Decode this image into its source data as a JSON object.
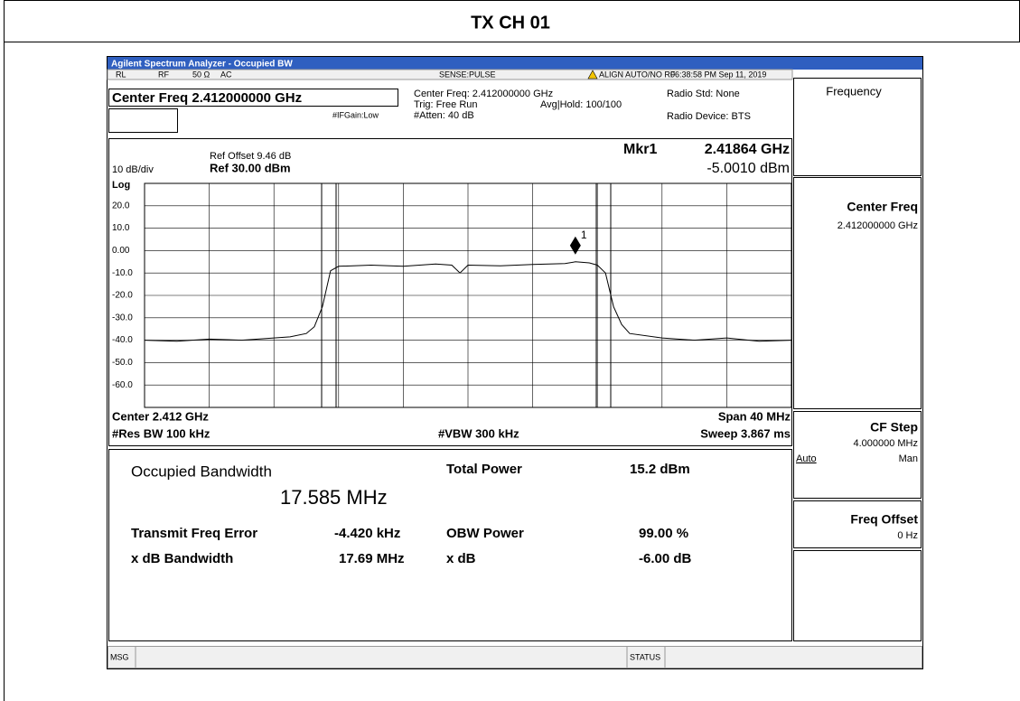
{
  "page_title": "TX CH 01",
  "window_title": "Agilent Spectrum Analyzer - Occupied BW",
  "status_bar": {
    "rl": "RL",
    "rf": "RF",
    "impedance": "50 Ω",
    "coupling": "AC",
    "sense": "SENSE:PULSE",
    "align": "ALIGN AUTO/NO RF",
    "time": "06:38:58 PM Sep 11, 2019"
  },
  "header": {
    "center_freq_box": "Center Freq 2.412000000 GHz",
    "center_freq": "Center Freq: 2.412000000 GHz",
    "trig": "Trig: Free Run",
    "atten": "#Atten: 40 dB",
    "avg_hold": "Avg|Hold: 100/100",
    "radio_std": "Radio Std: None",
    "radio_device": "Radio Device: BTS",
    "if_gain": "#IFGain:Low"
  },
  "graph": {
    "ref_offset": "Ref Offset 9.46 dB",
    "ref_level": "Ref 30.00 dBm",
    "scale": "10 dB/div",
    "scale_type": "Log",
    "marker": {
      "name": "Mkr1",
      "freq_label": "2.41864 GHz",
      "value_label": "-5.0010 dBm",
      "label": "1",
      "freq": 2.41864,
      "value": -5.001
    },
    "center": "Center 2.412 GHz",
    "res_bw": "#Res BW 100 kHz",
    "vbw": "#VBW 300 kHz",
    "span": "Span 40 MHz",
    "sweep": "Sweep 3.867 ms",
    "xlim": [
      2.392,
      2.432
    ],
    "xticks": [
      2.392,
      2.396,
      2.4,
      2.404,
      2.408,
      2.412,
      2.416,
      2.42,
      2.424,
      2.428,
      2.432
    ],
    "ylim": [
      -70,
      30
    ],
    "yticks": [
      {
        "value": 20,
        "label": "20.0"
      },
      {
        "value": 10,
        "label": "10.0"
      },
      {
        "value": 0,
        "label": "0.00"
      },
      {
        "value": -10,
        "label": "-10.0"
      },
      {
        "value": -20,
        "label": "-20.0"
      },
      {
        "value": -30,
        "label": "-30.0"
      },
      {
        "value": -40,
        "label": "-40.0"
      },
      {
        "value": -50,
        "label": "-50.0"
      },
      {
        "value": -60,
        "label": "-60.0"
      }
    ],
    "grid": true,
    "color": "#000000",
    "trace": {
      "x": [
        2.392,
        2.394,
        2.396,
        2.398,
        2.4,
        2.401,
        2.402,
        2.4025,
        2.403,
        2.4035,
        2.404,
        2.406,
        2.408,
        2.41,
        2.411,
        2.4115,
        2.412,
        2.414,
        2.416,
        2.418,
        2.41864,
        2.4195,
        2.42,
        2.4205,
        2.421,
        2.4215,
        2.422,
        2.424,
        2.426,
        2.428,
        2.43,
        2.432
      ],
      "values": [
        -40,
        -40.5,
        -39.5,
        -40,
        -39,
        -38.5,
        -37,
        -34,
        -25,
        -9,
        -7,
        -6.5,
        -7,
        -6,
        -6.5,
        -10,
        -6.5,
        -6.8,
        -6.2,
        -5.8,
        -5,
        -5.5,
        -6.5,
        -10,
        -25,
        -33,
        -37,
        -39,
        -40,
        -39,
        -40.5,
        -40
      ]
    }
  },
  "results": {
    "obw_label": "Occupied Bandwidth",
    "obw_value": "17.585 MHz",
    "total_power_label": "Total Power",
    "total_power": "15.2 dBm",
    "freq_error_label": "Transmit Freq Error",
    "freq_error": "-4.420 kHz",
    "obw_power_label": "OBW Power",
    "obw_power": "99.00 %",
    "xdb_bw_label": "x dB Bandwidth",
    "xdb_bw": "17.69 MHz",
    "xdb_label": "x dB",
    "xdb": "-6.00 dB"
  },
  "softkeys": {
    "menu": "Frequency",
    "center_freq": "Center Freq",
    "center_freq_value": "2.412000000 GHz",
    "cf_step": "CF Step",
    "cf_step_value": "4.000000 MHz",
    "auto": "Auto",
    "man": "Man",
    "freq_offset": "Freq Offset",
    "freq_offset_value": "0 Hz"
  },
  "bottom": {
    "msg": "MSG",
    "status": "STATUS"
  }
}
